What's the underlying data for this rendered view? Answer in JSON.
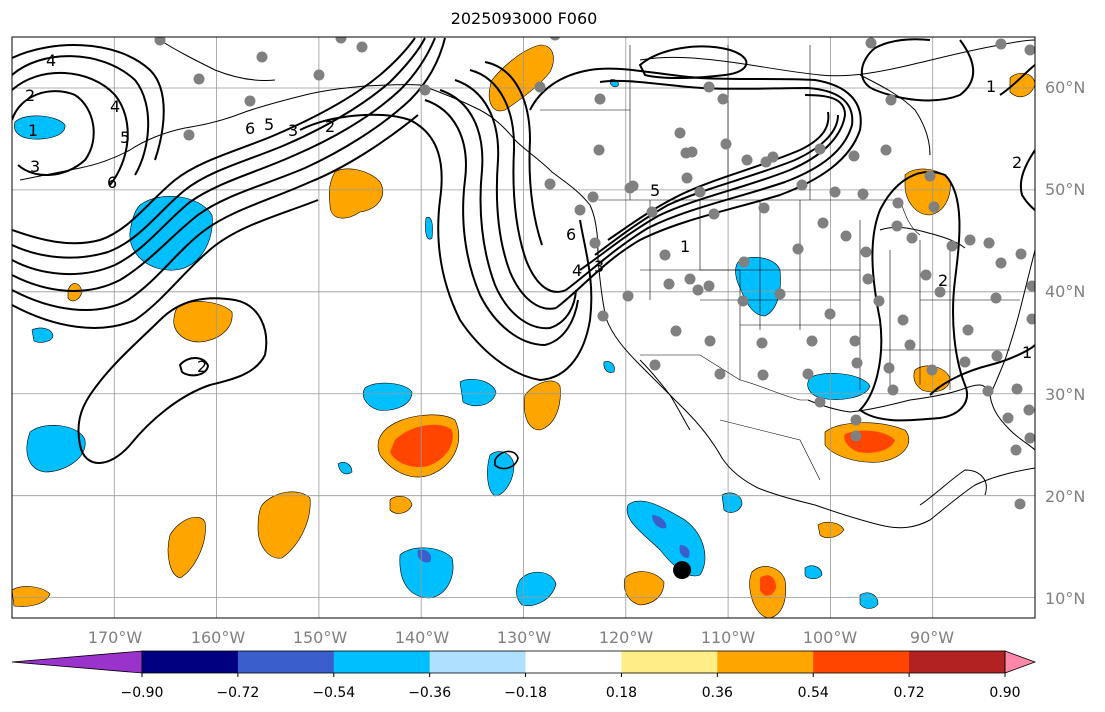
{
  "title": "2025093000 F060",
  "map": {
    "lat_labels": [
      "60°N",
      "50°N",
      "40°N",
      "30°N",
      "20°N",
      "10°N"
    ],
    "lon_labels": [
      "170°W",
      "160°W",
      "150°W",
      "140°W",
      "130°W",
      "120°W",
      "110°W",
      "100°W",
      "90°W"
    ],
    "lat_range": [
      8,
      65
    ],
    "lon_range": [
      -180,
      -80
    ],
    "grid": true,
    "marker": {
      "lon": -114.5,
      "lat": 12.7,
      "color": "#000000"
    },
    "contour_labels": [
      "4",
      "2",
      "1",
      "3",
      "5",
      "6",
      "4",
      "6",
      "5",
      "3",
      "2",
      "2",
      "5",
      "6",
      "4",
      "3",
      "1",
      "1",
      "2",
      "2",
      "1"
    ]
  },
  "colorbar": {
    "ticks": [
      "−0.90",
      "−0.72",
      "−0.54",
      "−0.36",
      "−0.18",
      "0.18",
      "0.36",
      "0.54",
      "0.72",
      "0.90"
    ],
    "colors": [
      "#9933cc",
      "#000080",
      "#3a5fcd",
      "#00bfff",
      "#b0e0ff",
      "#ffffff",
      "#ffee88",
      "#ffa500",
      "#ff4500",
      "#b22222",
      "#ff88aa"
    ]
  }
}
